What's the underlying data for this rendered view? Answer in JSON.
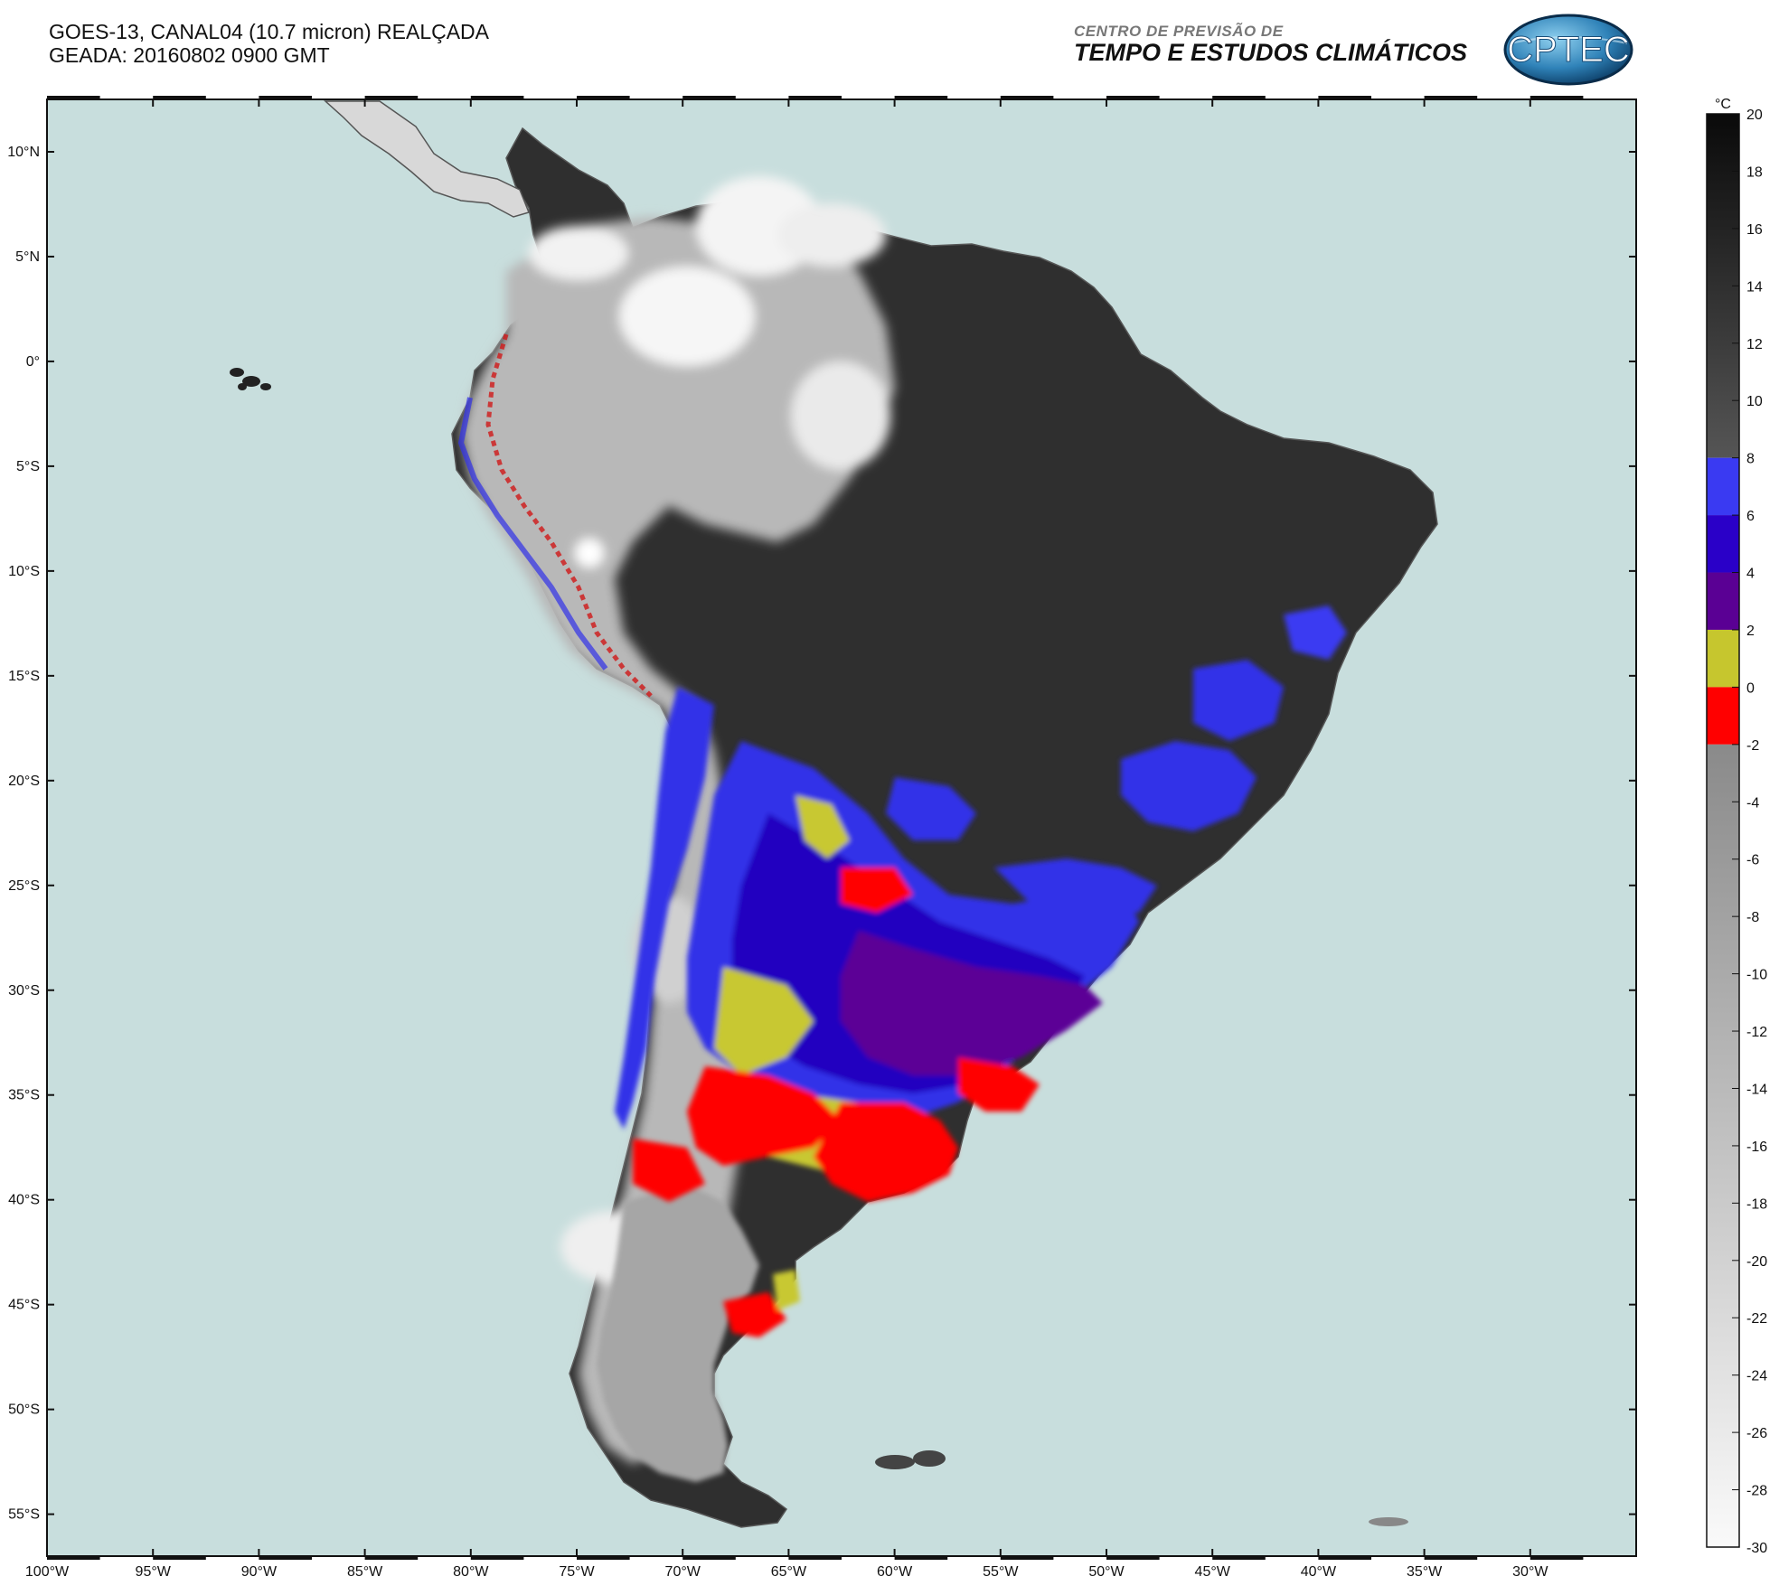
{
  "header": {
    "line1": "GOES-13, CANAL04 (10.7 micron) REALÇADA",
    "line2": "GEADA: 20160802 0900 GMT",
    "brand_small": "CENTRO DE PREVISÃO DE",
    "brand_big": "TEMPO E ESTUDOS CLIMÁTICOS",
    "logo_text": "CPTEC"
  },
  "map": {
    "lon_range": [
      -100,
      -25
    ],
    "lat_range": [
      -57,
      12.5
    ],
    "ocean_color": "#c8dedd",
    "land_color": "#2e2e2e",
    "lat_ticks": [
      "10°N",
      "5°N",
      "0°",
      "5°S",
      "10°S",
      "15°S",
      "20°S",
      "25°S",
      "30°S",
      "35°S",
      "40°S",
      "45°S",
      "50°S",
      "55°S"
    ],
    "lon_ticks": [
      "100°W",
      "95°W",
      "90°W",
      "85°W",
      "80°W",
      "75°W",
      "70°W",
      "65°W",
      "60°W",
      "55°W",
      "50°W",
      "45°W",
      "40°W",
      "35°W",
      "30°W"
    ]
  },
  "colorbar": {
    "unit": "°C",
    "labels": [
      "20",
      "18",
      "16",
      "14",
      "12",
      "10",
      "8",
      "6",
      "4",
      "2",
      "0",
      "-2",
      "-4",
      "-6",
      "-8",
      "-10",
      "-12",
      "-14",
      "-16",
      "-18",
      "-20",
      "-22",
      "-24",
      "-26",
      "-28",
      "-30"
    ],
    "bands": [
      {
        "from": 8,
        "to": 20,
        "color": "gradient-dark"
      },
      {
        "from": 6,
        "to": 8,
        "color": "#3a3af2"
      },
      {
        "from": 4,
        "to": 6,
        "color": "#2a00c8"
      },
      {
        "from": 2,
        "to": 4,
        "color": "#5a0094"
      },
      {
        "from": 0,
        "to": 2,
        "color": "#c6c62e"
      },
      {
        "from": -2,
        "to": 0,
        "color": "#ff0000"
      },
      {
        "from": -30,
        "to": -2,
        "color": "gradient-light"
      }
    ]
  }
}
